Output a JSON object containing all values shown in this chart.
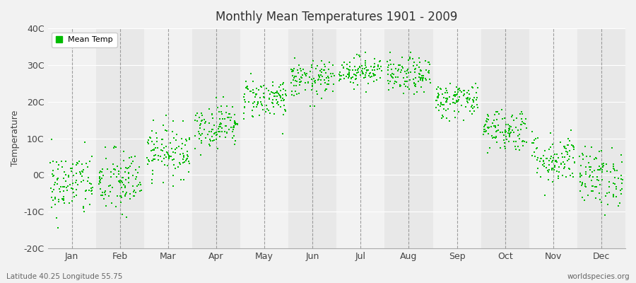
{
  "title": "Monthly Mean Temperatures 1901 - 2009",
  "ylabel": "Temperature",
  "xlabel_bottom_left": "Latitude 40.25 Longitude 55.75",
  "xlabel_bottom_right": "worldspecies.org",
  "legend_label": "Mean Temp",
  "background_color": "#f2f2f2",
  "plot_bg_color": "#f2f2f2",
  "band_color_even": "#f2f2f2",
  "band_color_odd": "#e8e8e8",
  "dot_color": "#00bb00",
  "dot_size": 3,
  "ylim": [
    -20,
    40
  ],
  "yticks": [
    -20,
    -10,
    0,
    10,
    20,
    30,
    40
  ],
  "ytick_labels": [
    "-20C",
    "-10C",
    "0C",
    "10C",
    "20C",
    "30C",
    "40C"
  ],
  "months": [
    "Jan",
    "Feb",
    "Mar",
    "Apr",
    "May",
    "Jun",
    "Jul",
    "Aug",
    "Sep",
    "Oct",
    "Nov",
    "Dec"
  ],
  "monthly_means": [
    -2.5,
    -2.0,
    6.5,
    13.5,
    21.0,
    26.0,
    28.5,
    27.0,
    20.5,
    12.5,
    4.5,
    -0.5
  ],
  "monthly_stds": [
    4.5,
    4.5,
    3.5,
    3.0,
    2.8,
    2.5,
    2.0,
    2.5,
    2.5,
    3.0,
    3.5,
    4.0
  ],
  "n_years": 109,
  "seed": 42
}
